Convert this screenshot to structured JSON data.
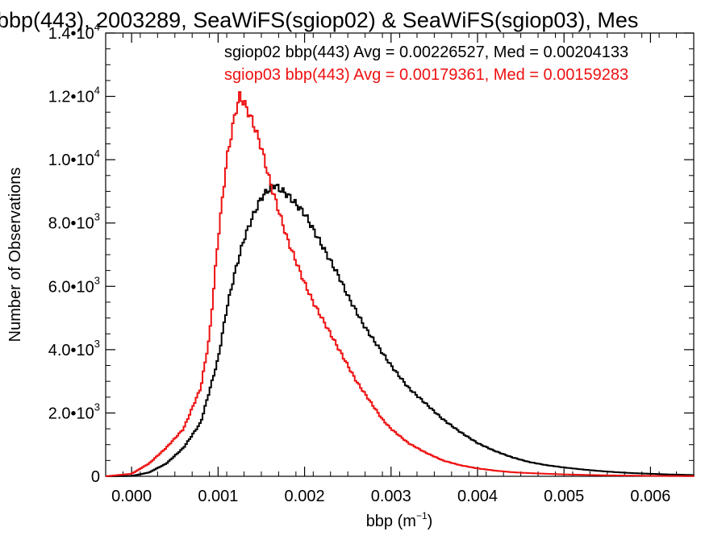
{
  "chart_data": {
    "type": "line",
    "title": "bbp(443), 2003289, SeaWiFS(sgiop02) & SeaWiFS(sgiop03), Mes",
    "xlabel_main": "bbp (m",
    "xlabel_exp": "−1",
    "xlabel_close": ")",
    "ylabel": "Number of Observations",
    "xlim": [
      -0.0003,
      0.0065
    ],
    "ylim": [
      0,
      14000
    ],
    "x_ticks": [
      {
        "value": 0.0,
        "label": "0.000"
      },
      {
        "value": 0.001,
        "label": "0.001"
      },
      {
        "value": 0.002,
        "label": "0.002"
      },
      {
        "value": 0.003,
        "label": "0.003"
      },
      {
        "value": 0.004,
        "label": "0.004"
      },
      {
        "value": 0.005,
        "label": "0.005"
      },
      {
        "value": 0.006,
        "label": "0.006"
      }
    ],
    "y_ticks": [
      {
        "value": 0,
        "mant": "0",
        "exp": ""
      },
      {
        "value": 2000,
        "mant": "2.0•10",
        "exp": "3"
      },
      {
        "value": 4000,
        "mant": "4.0•10",
        "exp": "3"
      },
      {
        "value": 6000,
        "mant": "6.0•10",
        "exp": "3"
      },
      {
        "value": 8000,
        "mant": "8.0•10",
        "exp": "3"
      },
      {
        "value": 10000,
        "mant": "1.0•10",
        "exp": "4"
      },
      {
        "value": 12000,
        "mant": "1.2•10",
        "exp": "4"
      },
      {
        "value": 14000,
        "mant": "1.4•10",
        "exp": "4"
      }
    ],
    "legend_position": "top-right",
    "grid": false,
    "series": [
      {
        "name": "sgiop02 bbp(443) Avg = 0.00226527, Med = 0.00204133",
        "color": "#000000",
        "x": [
          -0.0003,
          0.0,
          0.0002,
          0.0004,
          0.0006,
          0.0008,
          0.001,
          0.0011,
          0.0012,
          0.0013,
          0.0014,
          0.0015,
          0.0016,
          0.00165,
          0.0017,
          0.0018,
          0.0019,
          0.002,
          0.0021,
          0.0022,
          0.0023,
          0.0024,
          0.0025,
          0.0026,
          0.0027,
          0.0028,
          0.0029,
          0.003,
          0.0032,
          0.0034,
          0.0036,
          0.0038,
          0.004,
          0.0042,
          0.0044,
          0.0046,
          0.0048,
          0.005,
          0.0052,
          0.0054,
          0.0056,
          0.0058,
          0.006,
          0.0062,
          0.0065
        ],
        "values": [
          0,
          10,
          120,
          400,
          900,
          1700,
          3700,
          5300,
          6500,
          7500,
          8200,
          8800,
          9100,
          9200,
          9100,
          8900,
          8600,
          8300,
          7800,
          7300,
          6800,
          6300,
          5700,
          5200,
          4700,
          4300,
          3900,
          3500,
          2800,
          2300,
          1800,
          1400,
          1050,
          800,
          600,
          450,
          350,
          280,
          220,
          170,
          130,
          100,
          80,
          60,
          40
        ]
      },
      {
        "name": "sgiop03 bbp(443) Avg = 0.00179361, Med = 0.00159283",
        "color": "#ee1111",
        "x": [
          -0.0003,
          0.0,
          0.0002,
          0.0004,
          0.0006,
          0.0008,
          0.0009,
          0.001,
          0.0011,
          0.0012,
          0.00125,
          0.0013,
          0.0014,
          0.0015,
          0.0016,
          0.0017,
          0.0018,
          0.0019,
          0.002,
          0.0021,
          0.0022,
          0.0023,
          0.0024,
          0.0025,
          0.0026,
          0.0027,
          0.0028,
          0.0029,
          0.003,
          0.0032,
          0.0034,
          0.0036,
          0.0038,
          0.004,
          0.0042,
          0.0044,
          0.0046,
          0.0048,
          0.005,
          0.0055,
          0.006,
          0.0065
        ],
        "values": [
          0,
          80,
          400,
          900,
          1500,
          2800,
          4400,
          7500,
          10000,
          11500,
          12000,
          11800,
          11200,
          10400,
          9300,
          8400,
          7500,
          6800,
          6100,
          5500,
          5000,
          4500,
          4000,
          3500,
          3000,
          2600,
          2200,
          1800,
          1500,
          1050,
          750,
          500,
          350,
          250,
          180,
          130,
          100,
          80,
          60,
          30,
          15,
          5
        ]
      }
    ]
  }
}
